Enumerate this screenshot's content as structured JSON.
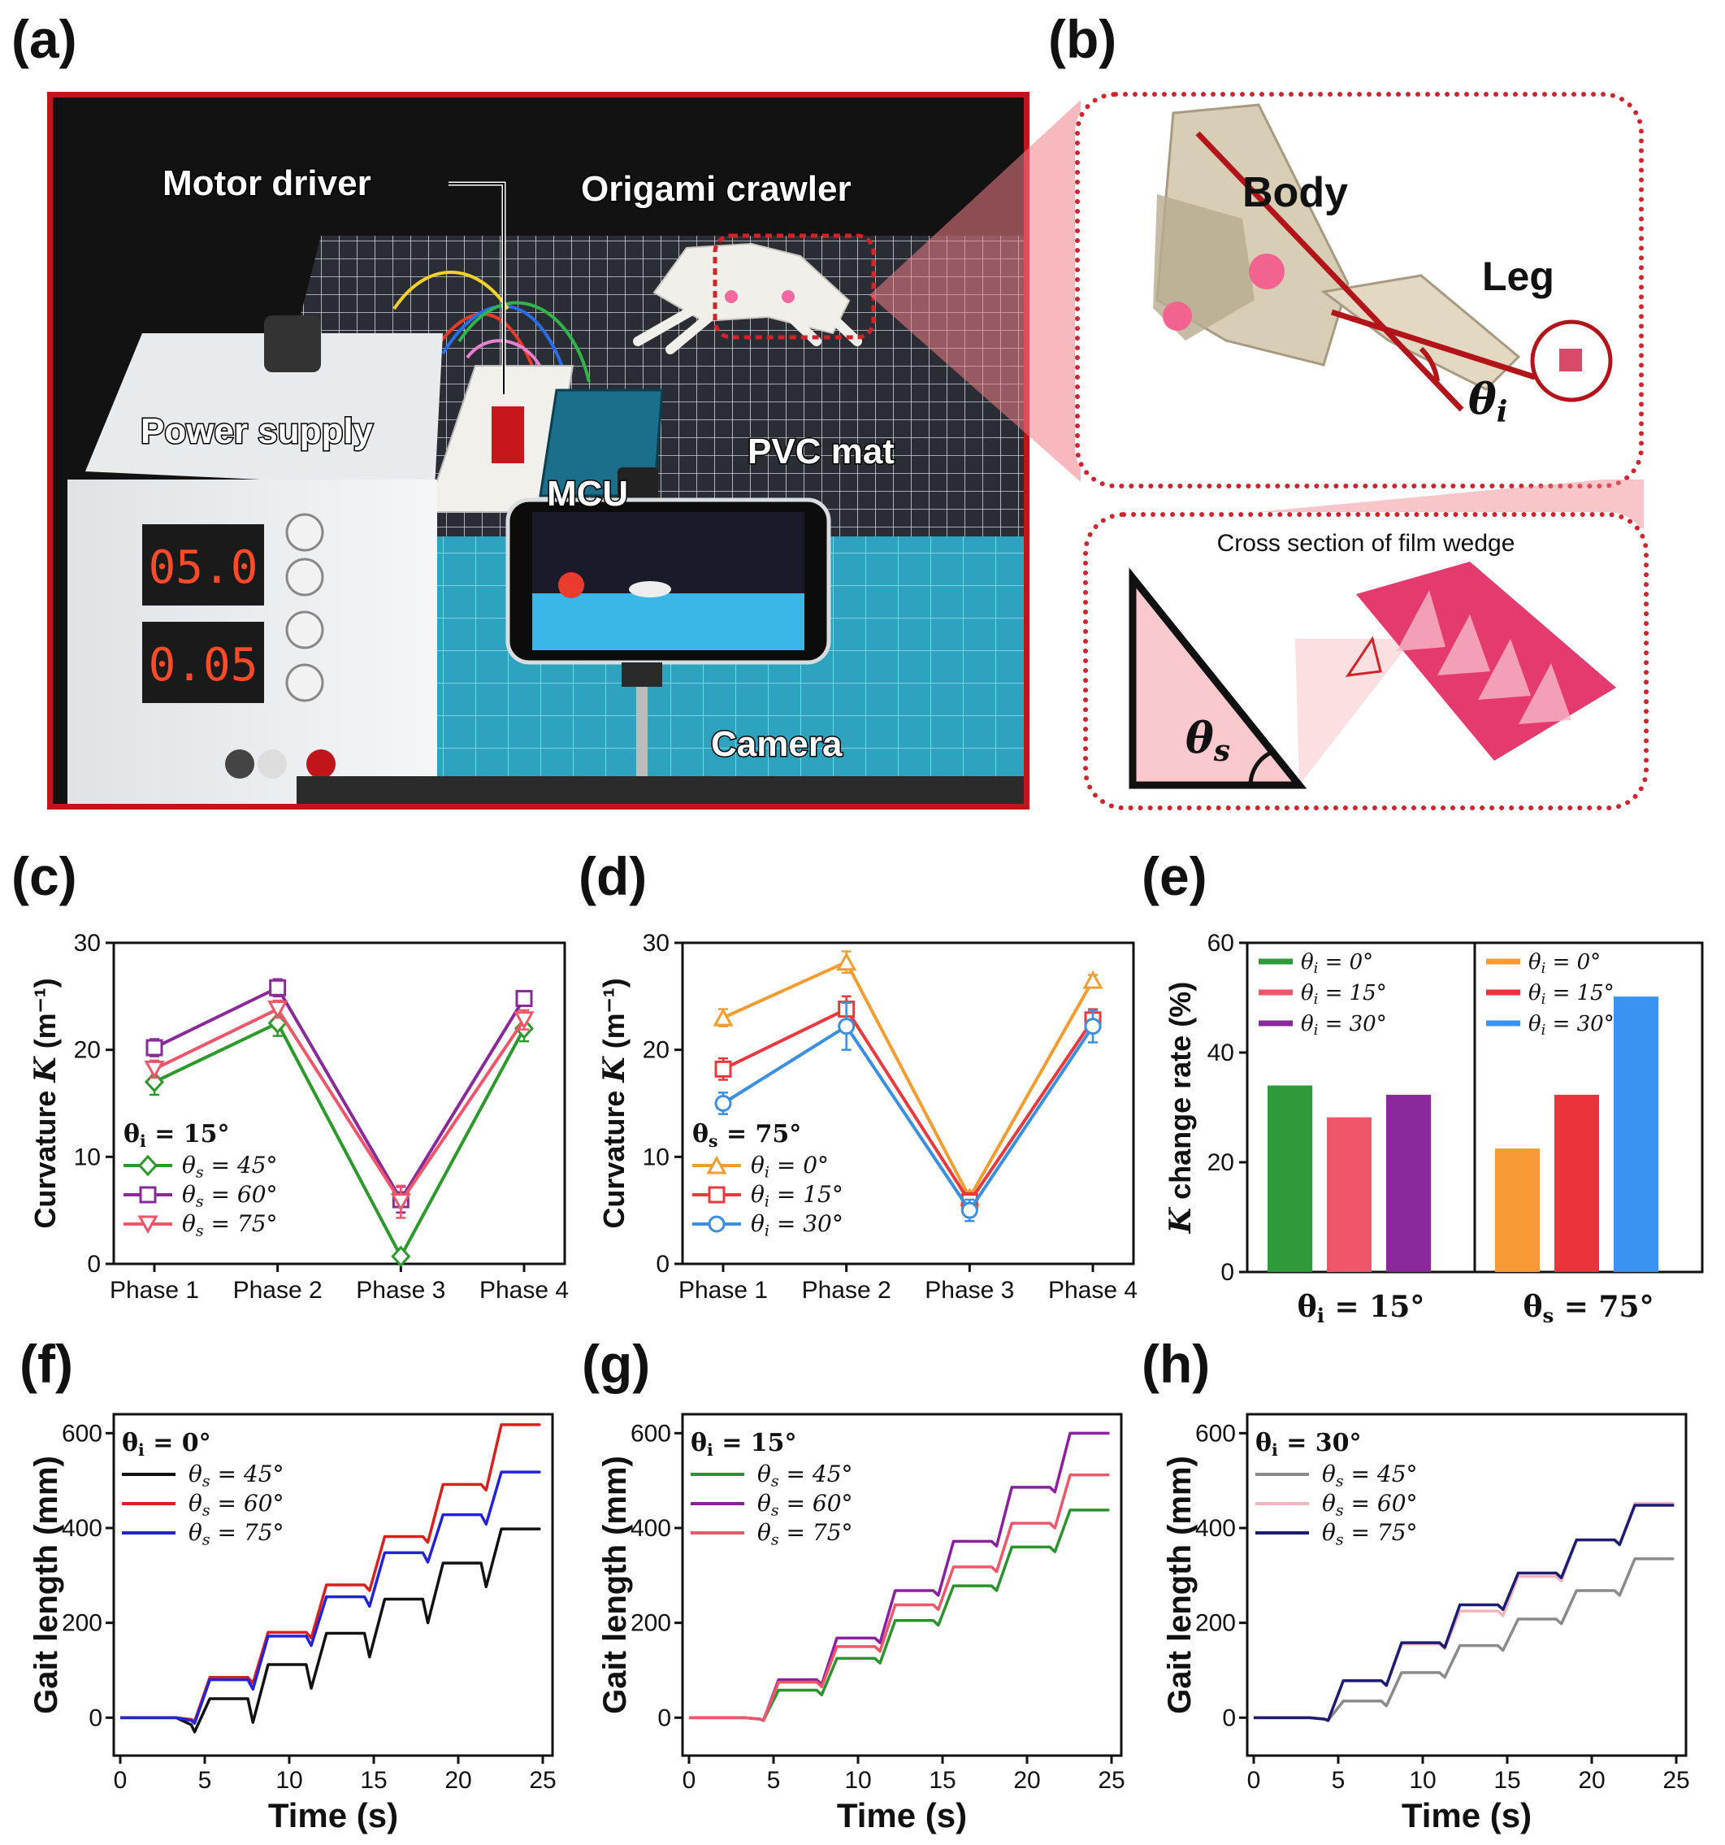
{
  "panels": {
    "a": "(a)",
    "b": "(b)",
    "c": "(c)",
    "d": "(d)",
    "e": "(e)",
    "f": "(f)",
    "g": "(g)",
    "h": "(h)"
  },
  "photo_a": {
    "labels": {
      "motor_driver": "Motor driver",
      "origami_crawler": "Origami crawler",
      "power_supply": "Power supply",
      "pvc_mat": "PVC mat",
      "mcu": "MCU",
      "camera": "Camera",
      "voltage_display": "05.0",
      "current_display": "0.05"
    },
    "colors": {
      "frame": "#c0161b",
      "mat": "#2fa6c4",
      "grid": "#3a3d44"
    }
  },
  "photo_b": {
    "body": "Body",
    "leg": "Leg",
    "theta_i": "θ",
    "theta_i_sub": "i",
    "cross_section": "Cross section of film wedge",
    "theta_s": "θ",
    "theta_s_sub": "s",
    "colors": {
      "outline": "#d2232a",
      "wedge": "#f9c9cd",
      "film": "#e43a6d"
    }
  },
  "chart_data": [
    {
      "id": "c",
      "type": "line",
      "categories": [
        "Phase 1",
        "Phase 2",
        "Phase 3",
        "Phase 4"
      ],
      "ylabel": "Curvature K (m⁻¹)",
      "ylim": [
        0,
        30
      ],
      "yticks": [
        0,
        10,
        20,
        30
      ],
      "legend_title": "θi = 15°",
      "series": [
        {
          "name": "θs = 45°",
          "color": "#2b9a2b",
          "marker": "diamond",
          "values": [
            17,
            22.5,
            0.7,
            22
          ],
          "errors": [
            1.2,
            1.2,
            0.3,
            1.2
          ]
        },
        {
          "name": "θs = 60°",
          "color": "#8a2a9a",
          "marker": "square",
          "values": [
            20.2,
            25.8,
            6,
            24.8
          ],
          "errors": [
            0.8,
            0.8,
            1.2,
            0.5
          ]
        },
        {
          "name": "θs = 75°",
          "color": "#f0566a",
          "marker": "triangle-down",
          "values": [
            18.2,
            23.8,
            5.8,
            22.8
          ],
          "errors": [
            0.8,
            0.8,
            1.5,
            0.9
          ]
        }
      ]
    },
    {
      "id": "d",
      "type": "line",
      "categories": [
        "Phase 1",
        "Phase 2",
        "Phase 3",
        "Phase 4"
      ],
      "ylabel": "Curvature K (m⁻¹)",
      "ylim": [
        0,
        30
      ],
      "yticks": [
        0,
        10,
        20,
        30
      ],
      "legend_title": "θs = 75°",
      "series": [
        {
          "name": "θi = 0°",
          "color": "#f39c2f",
          "marker": "triangle-up",
          "values": [
            23,
            28.2,
            6.2,
            26.5
          ],
          "errors": [
            0.8,
            1.0,
            0.6,
            0.5
          ]
        },
        {
          "name": "θi = 15°",
          "color": "#e8393d",
          "marker": "square",
          "values": [
            18.2,
            23.8,
            5.8,
            22.8
          ],
          "errors": [
            1.0,
            1.2,
            0.8,
            1.0
          ]
        },
        {
          "name": "θi = 30°",
          "color": "#3a8fe0",
          "marker": "circle",
          "values": [
            15,
            22.2,
            5,
            22.2
          ],
          "errors": [
            1.0,
            2.2,
            1.0,
            1.5
          ]
        }
      ]
    },
    {
      "id": "e",
      "type": "bar",
      "ylabel": "K change rate (%)",
      "ylim": [
        0,
        60
      ],
      "yticks": [
        0,
        20,
        40,
        60
      ],
      "groups": [
        {
          "label": "θi = 15°",
          "bars": [
            {
              "name": "θi = 0°",
              "color": "#2e9a3a",
              "value": 34
            },
            {
              "name": "θi = 15°",
              "color": "#f0566a",
              "value": 28.2
            },
            {
              "name": "θi = 30°",
              "color": "#8a2a9a",
              "value": 32.3
            }
          ]
        },
        {
          "label": "θs = 75°",
          "bars": [
            {
              "name": "θi = 0°",
              "color": "#f79a36",
              "value": 22.5
            },
            {
              "name": "θi = 15°",
              "color": "#ea333b",
              "value": 32.3
            },
            {
              "name": "θi = 30°",
              "color": "#3a93f0",
              "value": 50.2
            }
          ]
        }
      ]
    },
    {
      "id": "f",
      "type": "line",
      "xlabel": "Time (s)",
      "ylabel": "Gait length (mm)",
      "xlim": [
        0,
        25
      ],
      "xticks": [
        0,
        5,
        10,
        15,
        20,
        25
      ],
      "ylim": [
        -80,
        640
      ],
      "yticks": [
        0,
        200,
        400,
        600
      ],
      "legend_title": "θi = 0°",
      "series": [
        {
          "name": "θs = 45°",
          "color": "#111111",
          "steps": [
            0,
            40,
            112,
            178,
            250,
            326,
            398
          ],
          "dip": 50
        },
        {
          "name": "θs = 60°",
          "color": "#d8211f",
          "steps": [
            0,
            85,
            180,
            280,
            382,
            492,
            618
          ],
          "dip": 12
        },
        {
          "name": "θs = 75°",
          "color": "#2323d8",
          "steps": [
            0,
            80,
            172,
            255,
            348,
            428,
            518
          ],
          "dip": 20
        }
      ]
    },
    {
      "id": "g",
      "type": "line",
      "xlabel": "Time (s)",
      "ylabel": "Gait length (mm)",
      "xlim": [
        0,
        25
      ],
      "xticks": [
        0,
        5,
        10,
        15,
        20,
        25
      ],
      "ylim": [
        -80,
        640
      ],
      "yticks": [
        0,
        200,
        400,
        600
      ],
      "legend_title": "θi = 15°",
      "series": [
        {
          "name": "θs = 45°",
          "color": "#2b932b",
          "steps": [
            0,
            58,
            125,
            205,
            278,
            360,
            438
          ],
          "dip": 10
        },
        {
          "name": "θs = 60°",
          "color": "#8a1fa0",
          "steps": [
            0,
            80,
            168,
            268,
            372,
            486,
            600
          ],
          "dip": 10
        },
        {
          "name": "θs = 75°",
          "color": "#f0566a",
          "steps": [
            0,
            75,
            150,
            238,
            318,
            410,
            512
          ],
          "dip": 10
        }
      ]
    },
    {
      "id": "h",
      "type": "line",
      "xlabel": "Time (s)",
      "ylabel": "Gait length (mm)",
      "xlim": [
        0,
        25
      ],
      "xticks": [
        0,
        5,
        10,
        15,
        20,
        25
      ],
      "ylim": [
        -80,
        640
      ],
      "yticks": [
        0,
        200,
        400,
        600
      ],
      "legend_title": "θi = 30°",
      "series": [
        {
          "name": "θs = 45°",
          "color": "#8a8a8a",
          "steps": [
            0,
            35,
            95,
            152,
            208,
            268,
            335
          ],
          "dip": 10
        },
        {
          "name": "θs = 60°",
          "color": "#f4b4bb",
          "steps": [
            0,
            78,
            155,
            225,
            298,
            375,
            452
          ],
          "dip": 10
        },
        {
          "name": "θs = 75°",
          "color": "#1c1c72",
          "steps": [
            0,
            78,
            158,
            238,
            305,
            375,
            448
          ],
          "dip": 10
        }
      ]
    }
  ]
}
